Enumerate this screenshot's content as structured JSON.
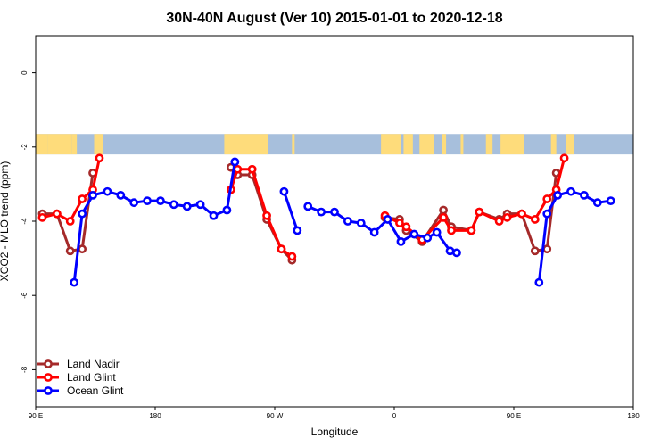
{
  "chart_data": {
    "type": "line",
    "title": "30N-40N August (Ver 10)   2015-01-01 to 2020-12-18",
    "xlabel": "Longitude",
    "ylabel": "XCO2 - MLO trend (ppm)",
    "xlim": [
      90,
      540
    ],
    "ylim": [
      -9,
      1
    ],
    "x_ticks": [
      {
        "value": 90,
        "label": "90 E"
      },
      {
        "value": 180,
        "label": "180"
      },
      {
        "value": 270,
        "label": "90 W"
      },
      {
        "value": 360,
        "label": "0"
      },
      {
        "value": 450,
        "label": "90 E"
      },
      {
        "value": 540,
        "label": "180"
      }
    ],
    "y_ticks": [
      {
        "value": 0,
        "label": "0"
      },
      {
        "value": -2,
        "label": "-2"
      },
      {
        "value": -4,
        "label": "-4"
      },
      {
        "value": -6,
        "label": "-6"
      },
      {
        "value": -8,
        "label": "-8"
      }
    ],
    "map_strip": {
      "y_top": -1.65,
      "y_bottom": -2.2,
      "ocean_color": "#a7bfdc",
      "land_color": "#fedc7b",
      "land_ranges": [
        [
          90,
          99
        ],
        [
          99,
          117
        ],
        [
          117,
          121
        ],
        [
          134,
          141
        ],
        [
          232,
          265
        ],
        [
          283,
          285
        ],
        [
          350,
          365
        ],
        [
          367,
          374
        ],
        [
          379,
          390
        ],
        [
          396,
          399
        ],
        [
          410,
          412
        ],
        [
          429,
          434
        ],
        [
          440,
          458
        ],
        [
          478,
          482
        ],
        [
          489,
          495
        ]
      ]
    },
    "series": [
      {
        "name": "Land Nadir",
        "color": "#a52a2a",
        "segments": [
          [
            [
              95,
              -3.8
            ],
            [
              106,
              -3.8
            ],
            [
              116,
              -4.8
            ],
            [
              125,
              -4.75
            ],
            [
              133,
              -2.7
            ]
          ],
          [
            [
              237,
              -2.55
            ],
            [
              242,
              -2.75
            ],
            [
              253,
              -2.75
            ],
            [
              264,
              -3.95
            ],
            [
              275,
              -4.75
            ],
            [
              283,
              -5.05
            ]
          ],
          [
            [
              353,
              -3.9
            ],
            [
              364,
              -3.95
            ],
            [
              369,
              -4.25
            ],
            [
              381,
              -4.55
            ],
            [
              397,
              -3.7
            ],
            [
              403,
              -4.15
            ],
            [
              418,
              -4.25
            ],
            [
              424,
              -3.75
            ],
            [
              439,
              -3.95
            ],
            [
              445,
              -3.8
            ],
            [
              456,
              -3.8
            ],
            [
              466,
              -4.8
            ],
            [
              475,
              -4.75
            ],
            [
              482,
              -2.7
            ]
          ]
        ]
      },
      {
        "name": "Land Glint",
        "color": "#ff0000",
        "segments": [
          [
            [
              95,
              -3.9
            ],
            [
              106,
              -3.8
            ],
            [
              116,
              -4.0
            ],
            [
              125,
              -3.4
            ],
            [
              133,
              -3.15
            ],
            [
              138,
              -2.3
            ]
          ],
          [
            [
              237,
              -3.15
            ],
            [
              242,
              -2.6
            ],
            [
              253,
              -2.6
            ],
            [
              264,
              -3.85
            ],
            [
              275,
              -4.75
            ],
            [
              283,
              -4.95
            ]
          ],
          [
            [
              353,
              -3.85
            ],
            [
              364,
              -4.05
            ],
            [
              369,
              -4.15
            ],
            [
              381,
              -4.5
            ],
            [
              397,
              -3.9
            ],
            [
              403,
              -4.25
            ],
            [
              418,
              -4.25
            ],
            [
              424,
              -3.75
            ],
            [
              439,
              -4.0
            ],
            [
              445,
              -3.9
            ],
            [
              456,
              -3.8
            ],
            [
              466,
              -3.95
            ],
            [
              475,
              -3.4
            ],
            [
              482,
              -3.15
            ],
            [
              488,
              -2.3
            ]
          ]
        ]
      },
      {
        "name": "Ocean Glint",
        "color": "#0000ff",
        "segments": [
          [
            [
              119,
              -5.65
            ],
            [
              125,
              -3.8
            ],
            [
              133,
              -3.3
            ],
            [
              144,
              -3.2
            ],
            [
              154,
              -3.3
            ],
            [
              164,
              -3.5
            ],
            [
              174,
              -3.45
            ],
            [
              184,
              -3.45
            ],
            [
              194,
              -3.55
            ],
            [
              204,
              -3.6
            ],
            [
              214,
              -3.55
            ],
            [
              224,
              -3.85
            ],
            [
              234,
              -3.7
            ],
            [
              240,
              -2.4
            ]
          ],
          [
            [
              277,
              -3.2
            ],
            [
              287,
              -4.25
            ]
          ],
          [
            [
              295,
              -3.6
            ],
            [
              305,
              -3.75
            ],
            [
              315,
              -3.75
            ],
            [
              325,
              -4.0
            ],
            [
              335,
              -4.05
            ],
            [
              345,
              -4.3
            ],
            [
              355,
              -3.95
            ],
            [
              365,
              -4.55
            ],
            [
              375,
              -4.35
            ],
            [
              385,
              -4.45
            ],
            [
              392,
              -4.3
            ],
            [
              402,
              -4.8
            ],
            [
              407,
              -4.85
            ]
          ],
          [
            [
              469,
              -5.65
            ],
            [
              475,
              -3.8
            ],
            [
              483,
              -3.3
            ],
            [
              493,
              -3.2
            ],
            [
              503,
              -3.3
            ],
            [
              513,
              -3.5
            ],
            [
              523,
              -3.45
            ]
          ]
        ]
      }
    ],
    "legend": {
      "position": "bottom-left",
      "entries": [
        "Land Nadir",
        "Land Glint",
        "Ocean Glint"
      ]
    },
    "grid": false
  }
}
